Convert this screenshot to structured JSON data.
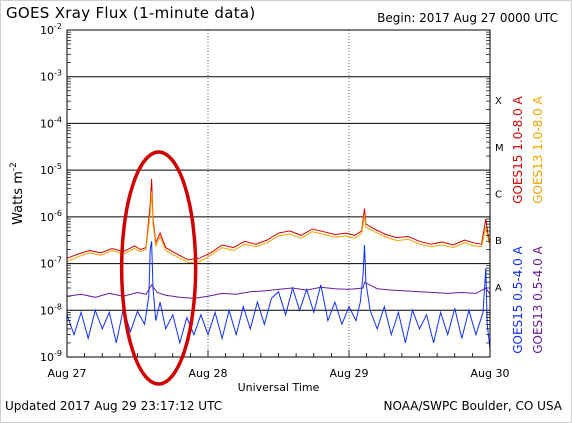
{
  "header": {
    "title": "GOES Xray Flux (1-minute data)",
    "begin": "Begin:  2017 Aug 27 0000 UTC"
  },
  "footer": {
    "updated": "Updated 2017 Aug 29 23:17:12 UTC",
    "credit": "NOAA/SWPC Boulder, CO USA"
  },
  "colors": {
    "goes15_long": "#d40000",
    "goes13_long": "#f5a300",
    "goes15_short": "#1030ff",
    "goes13_short": "#6a1b9a",
    "annotation": "#d00000"
  },
  "chart_data": {
    "type": "line",
    "title": "GOES Xray Flux (1-minute data)",
    "xlabel": "Universal Time",
    "ylabel_base": "Watts m",
    "ylabel_sup": "-2",
    "yscale": "log",
    "ylim": [
      1e-09,
      0.01
    ],
    "xlim": [
      0,
      3
    ],
    "x_unit": "days since 2017 Aug 27 0000 UTC",
    "x_ticks": [
      {
        "x": 0,
        "label": "Aug 27"
      },
      {
        "x": 1,
        "label": "Aug 28"
      },
      {
        "x": 2,
        "label": "Aug 29"
      },
      {
        "x": 3,
        "label": "Aug 30"
      }
    ],
    "y_ticks": [
      {
        "exp": -2,
        "mant": "10",
        "sup": "-2"
      },
      {
        "exp": -3,
        "mant": "10",
        "sup": "-3"
      },
      {
        "exp": -4,
        "mant": "10",
        "sup": "-4"
      },
      {
        "exp": -5,
        "mant": "10",
        "sup": "-5"
      },
      {
        "exp": -6,
        "mant": "10",
        "sup": "-6"
      },
      {
        "exp": -7,
        "mant": "10",
        "sup": "-7"
      },
      {
        "exp": -8,
        "mant": "10",
        "sup": "-8"
      },
      {
        "exp": -9,
        "mant": "10",
        "sup": "-9"
      }
    ],
    "flare_classes": [
      {
        "label": "X",
        "exp": -3.5
      },
      {
        "label": "M",
        "exp": -4.5
      },
      {
        "label": "C",
        "exp": -5.5
      },
      {
        "label": "B",
        "exp": -6.5
      },
      {
        "label": "A",
        "exp": -7.5
      }
    ],
    "legend_right": [
      {
        "label": "GOES15 1.0-8.0 A",
        "color": "#d40000"
      },
      {
        "label": "GOES13 1.0-8.0 A",
        "color": "#f5a300"
      }
    ],
    "legend_right2": [
      {
        "label": "GOES15 0.5-4.0 A",
        "color": "#1030ff"
      },
      {
        "label": "GOES13 0.5-4.0 A",
        "color": "#6a1b9a"
      }
    ],
    "series": [
      {
        "name": "GOES15 1.0-8.0 A",
        "color": "#d40000",
        "points": [
          [
            0.0,
            1.3e-07
          ],
          [
            0.08,
            1.6e-07
          ],
          [
            0.16,
            1.9e-07
          ],
          [
            0.24,
            1.7e-07
          ],
          [
            0.32,
            2.1e-07
          ],
          [
            0.4,
            1.8e-07
          ],
          [
            0.48,
            2.4e-07
          ],
          [
            0.52,
            2e-07
          ],
          [
            0.56,
            2.2e-07
          ],
          [
            0.59,
            1.8e-06
          ],
          [
            0.6,
            6.5e-06
          ],
          [
            0.61,
            9e-07
          ],
          [
            0.63,
            2.8e-07
          ],
          [
            0.66,
            4.5e-07
          ],
          [
            0.7,
            2.2e-07
          ],
          [
            0.78,
            1.6e-07
          ],
          [
            0.86,
            1.2e-07
          ],
          [
            0.94,
            1.3e-07
          ],
          [
            1.02,
            1.7e-07
          ],
          [
            1.1,
            2.5e-07
          ],
          [
            1.18,
            2.2e-07
          ],
          [
            1.26,
            3e-07
          ],
          [
            1.34,
            2.6e-07
          ],
          [
            1.42,
            3.2e-07
          ],
          [
            1.5,
            4.5e-07
          ],
          [
            1.58,
            5e-07
          ],
          [
            1.66,
            4e-07
          ],
          [
            1.74,
            5.5e-07
          ],
          [
            1.82,
            4.8e-07
          ],
          [
            1.9,
            4.2e-07
          ],
          [
            1.98,
            4.5e-07
          ],
          [
            2.04,
            4e-07
          ],
          [
            2.09,
            5e-07
          ],
          [
            2.11,
            1.5e-06
          ],
          [
            2.12,
            7e-07
          ],
          [
            2.18,
            5.5e-07
          ],
          [
            2.26,
            4.2e-07
          ],
          [
            2.34,
            3.6e-07
          ],
          [
            2.42,
            3.8e-07
          ],
          [
            2.5,
            3e-07
          ],
          [
            2.58,
            2.6e-07
          ],
          [
            2.66,
            2.9e-07
          ],
          [
            2.74,
            2.5e-07
          ],
          [
            2.82,
            3.2e-07
          ],
          [
            2.88,
            2.8e-07
          ],
          [
            2.94,
            2.6e-07
          ],
          [
            2.97,
            9e-07
          ],
          [
            2.99,
            3.5e-07
          ],
          [
            3.0,
            2.8e-07
          ]
        ]
      },
      {
        "name": "GOES13 1.0-8.0 A",
        "color": "#f5a300",
        "points": [
          [
            0.0,
            1.1e-07
          ],
          [
            0.08,
            1.4e-07
          ],
          [
            0.16,
            1.7e-07
          ],
          [
            0.24,
            1.5e-07
          ],
          [
            0.32,
            1.9e-07
          ],
          [
            0.4,
            1.6e-07
          ],
          [
            0.48,
            2.1e-07
          ],
          [
            0.52,
            1.8e-07
          ],
          [
            0.56,
            2e-07
          ],
          [
            0.59,
            1.2e-06
          ],
          [
            0.6,
            3.5e-06
          ],
          [
            0.61,
            7e-07
          ],
          [
            0.63,
            2.4e-07
          ],
          [
            0.66,
            3.8e-07
          ],
          [
            0.7,
            1.9e-07
          ],
          [
            0.78,
            1.4e-07
          ],
          [
            0.86,
            1.05e-07
          ],
          [
            0.94,
            1.1e-07
          ],
          [
            1.02,
            1.5e-07
          ],
          [
            1.1,
            2.2e-07
          ],
          [
            1.18,
            1.9e-07
          ],
          [
            1.26,
            2.6e-07
          ],
          [
            1.34,
            2.3e-07
          ],
          [
            1.42,
            2.8e-07
          ],
          [
            1.5,
            3.9e-07
          ],
          [
            1.58,
            4.3e-07
          ],
          [
            1.66,
            3.5e-07
          ],
          [
            1.74,
            4.8e-07
          ],
          [
            1.82,
            4.2e-07
          ],
          [
            1.9,
            3.7e-07
          ],
          [
            1.98,
            3.9e-07
          ],
          [
            2.04,
            3.5e-07
          ],
          [
            2.09,
            4.4e-07
          ],
          [
            2.11,
            1.1e-06
          ],
          [
            2.12,
            6e-07
          ],
          [
            2.18,
            4.8e-07
          ],
          [
            2.26,
            3.7e-07
          ],
          [
            2.34,
            3.1e-07
          ],
          [
            2.42,
            3.3e-07
          ],
          [
            2.5,
            2.6e-07
          ],
          [
            2.58,
            2.3e-07
          ],
          [
            2.66,
            2.5e-07
          ],
          [
            2.74,
            2.2e-07
          ],
          [
            2.82,
            2.8e-07
          ],
          [
            2.88,
            2.4e-07
          ],
          [
            2.94,
            2.3e-07
          ],
          [
            2.97,
            6e-07
          ],
          [
            2.99,
            3e-07
          ],
          [
            3.0,
            2.4e-07
          ]
        ]
      },
      {
        "name": "GOES13 0.5-4.0 A",
        "color": "#6a1b9a",
        "points": [
          [
            0.0,
            2e-08
          ],
          [
            0.1,
            2.2e-08
          ],
          [
            0.2,
            1.9e-08
          ],
          [
            0.3,
            2.3e-08
          ],
          [
            0.4,
            2e-08
          ],
          [
            0.5,
            2.4e-08
          ],
          [
            0.56,
            2.2e-08
          ],
          [
            0.6,
            3.5e-08
          ],
          [
            0.64,
            2.4e-08
          ],
          [
            0.7,
            2.1e-08
          ],
          [
            0.8,
            1.9e-08
          ],
          [
            0.9,
            1.8e-08
          ],
          [
            1.0,
            2e-08
          ],
          [
            1.1,
            2.3e-08
          ],
          [
            1.2,
            2.2e-08
          ],
          [
            1.3,
            2.5e-08
          ],
          [
            1.4,
            2.6e-08
          ],
          [
            1.5,
            2.8e-08
          ],
          [
            1.6,
            3e-08
          ],
          [
            1.7,
            2.7e-08
          ],
          [
            1.8,
            3.1e-08
          ],
          [
            1.9,
            2.9e-08
          ],
          [
            2.0,
            2.8e-08
          ],
          [
            2.1,
            3e-08
          ],
          [
            2.11,
            4e-08
          ],
          [
            2.2,
            2.9e-08
          ],
          [
            2.3,
            2.7e-08
          ],
          [
            2.4,
            2.6e-08
          ],
          [
            2.5,
            2.5e-08
          ],
          [
            2.6,
            2.4e-08
          ],
          [
            2.7,
            2.3e-08
          ],
          [
            2.8,
            2.4e-08
          ],
          [
            2.9,
            2.3e-08
          ],
          [
            2.97,
            3e-08
          ],
          [
            3.0,
            2.2e-08
          ]
        ]
      },
      {
        "name": "GOES15 0.5-4.0 A",
        "color": "#1030ff",
        "points": [
          [
            0.0,
            8e-09
          ],
          [
            0.05,
            3e-09
          ],
          [
            0.1,
            9e-09
          ],
          [
            0.15,
            2.5e-09
          ],
          [
            0.2,
            1e-08
          ],
          [
            0.25,
            4e-09
          ],
          [
            0.3,
            9e-09
          ],
          [
            0.35,
            2e-09
          ],
          [
            0.4,
            1.1e-08
          ],
          [
            0.45,
            3.5e-09
          ],
          [
            0.5,
            9.5e-09
          ],
          [
            0.55,
            5e-09
          ],
          [
            0.58,
            2e-08
          ],
          [
            0.59,
            2e-07
          ],
          [
            0.6,
            3e-07
          ],
          [
            0.61,
            3e-08
          ],
          [
            0.63,
            6e-09
          ],
          [
            0.66,
            1.5e-08
          ],
          [
            0.7,
            4e-09
          ],
          [
            0.75,
            8e-09
          ],
          [
            0.8,
            2e-09
          ],
          [
            0.85,
            7e-09
          ],
          [
            0.9,
            3e-09
          ],
          [
            0.95,
            8e-09
          ],
          [
            1.0,
            3e-09
          ],
          [
            1.05,
            9e-09
          ],
          [
            1.1,
            2.5e-09
          ],
          [
            1.15,
            1e-08
          ],
          [
            1.2,
            3e-09
          ],
          [
            1.25,
            1.2e-08
          ],
          [
            1.3,
            4e-09
          ],
          [
            1.35,
            1.5e-08
          ],
          [
            1.4,
            5e-09
          ],
          [
            1.45,
            1.8e-08
          ],
          [
            1.5,
            2.5e-08
          ],
          [
            1.55,
            8e-09
          ],
          [
            1.6,
            3e-08
          ],
          [
            1.65,
            1e-08
          ],
          [
            1.7,
            2.8e-08
          ],
          [
            1.75,
            9e-09
          ],
          [
            1.8,
            3.5e-08
          ],
          [
            1.85,
            6e-09
          ],
          [
            1.9,
            1.5e-08
          ],
          [
            1.95,
            5e-09
          ],
          [
            2.0,
            1.2e-08
          ],
          [
            2.05,
            6e-09
          ],
          [
            2.08,
            1.5e-08
          ],
          [
            2.1,
            6e-08
          ],
          [
            2.11,
            2.5e-07
          ],
          [
            2.12,
            4e-08
          ],
          [
            2.15,
            1e-08
          ],
          [
            2.2,
            4e-09
          ],
          [
            2.25,
            1.2e-08
          ],
          [
            2.3,
            3e-09
          ],
          [
            2.35,
            9e-09
          ],
          [
            2.4,
            2e-09
          ],
          [
            2.45,
            1e-08
          ],
          [
            2.5,
            4e-09
          ],
          [
            2.55,
            8e-09
          ],
          [
            2.6,
            2e-09
          ],
          [
            2.65,
            9e-09
          ],
          [
            2.7,
            3e-09
          ],
          [
            2.75,
            1.1e-08
          ],
          [
            2.8,
            2.5e-09
          ],
          [
            2.85,
            1e-08
          ],
          [
            2.9,
            3e-09
          ],
          [
            2.95,
            9e-09
          ],
          [
            2.97,
            8e-08
          ],
          [
            2.98,
            5e-09
          ],
          [
            3.0,
            1.5e-09
          ]
        ]
      }
    ]
  }
}
